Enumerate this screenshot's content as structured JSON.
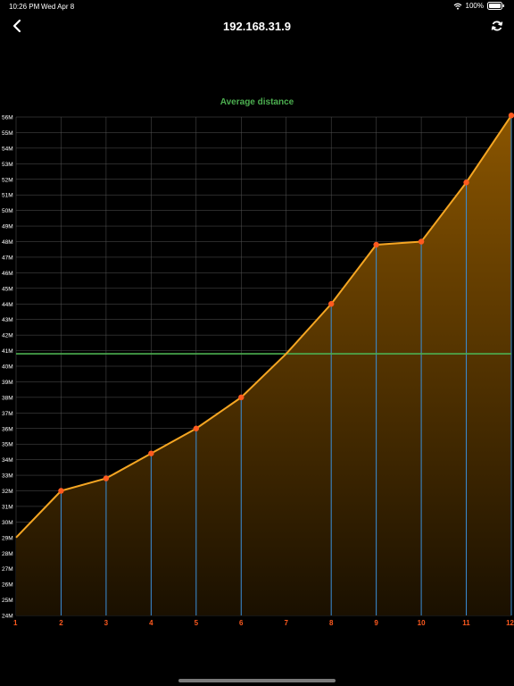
{
  "status_bar": {
    "time": "10:26 PM",
    "date": "Wed Apr 8",
    "battery": "100%",
    "icons": [
      "wifi-icon",
      "battery-icon"
    ]
  },
  "nav": {
    "title": "192.168.31.9",
    "back_icon": "chevron-left-icon",
    "refresh_icon": "refresh-icon"
  },
  "colors": {
    "background": "#000000",
    "line": "#f5a623",
    "fill_top": "#8a5500",
    "point": "#ff5a1f",
    "drop_line": "#3a8fd9",
    "average_line": "#4caf50",
    "title": "#4caf50",
    "x_tick": "#ff5a1f",
    "grid": "#555555"
  },
  "chart_data": {
    "type": "area",
    "title": "Average distance",
    "xlabel": "",
    "ylabel": "",
    "x": [
      1,
      2,
      3,
      4,
      5,
      6,
      7,
      8,
      9,
      10,
      11,
      12
    ],
    "series": [
      {
        "values": [
          29,
          32,
          32.8,
          34.4,
          36,
          38,
          40.8,
          44,
          47.8,
          48,
          51.8,
          56.1
        ],
        "markers": [
          false,
          true,
          true,
          true,
          true,
          true,
          false,
          true,
          true,
          true,
          true,
          true
        ]
      }
    ],
    "average": 40.8,
    "ylim": [
      24,
      56
    ],
    "yticks": [
      "24M",
      "25M",
      "26M",
      "27M",
      "28M",
      "29M",
      "30M",
      "31M",
      "32M",
      "33M",
      "34M",
      "35M",
      "36M",
      "37M",
      "38M",
      "39M",
      "40M",
      "41M",
      "42M",
      "43M",
      "44M",
      "45M",
      "46M",
      "47M",
      "48M",
      "49M",
      "50M",
      "51M",
      "52M",
      "53M",
      "54M",
      "55M",
      "56M"
    ],
    "xticks": [
      "1",
      "2",
      "3",
      "4",
      "5",
      "6",
      "7",
      "8",
      "9",
      "10",
      "11",
      "12"
    ],
    "grid": true
  }
}
